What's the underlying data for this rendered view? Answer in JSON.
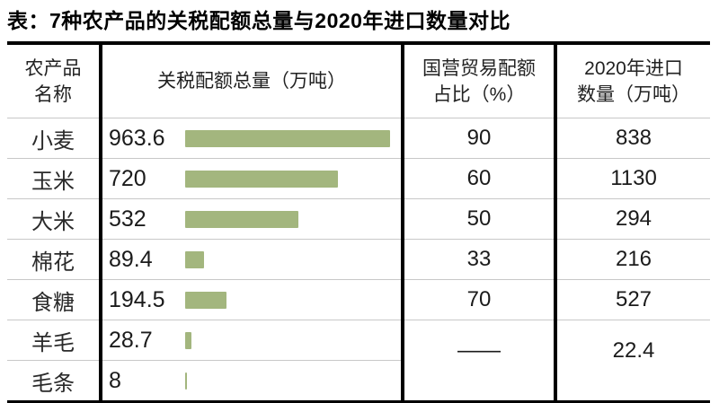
{
  "title": "表：7种农产品的关税配额总量与2020年进口数量对比",
  "table": {
    "headers": {
      "product": "农产品\n名称",
      "quota": "关税配额总量（万吨）",
      "state_pct": "国营贸易配额\n占比（%）",
      "import2020": "2020年进口\n数量（万吨）"
    },
    "bar_max": 963.6,
    "rows": [
      {
        "product": "小麦",
        "quota_label": "963.6",
        "quota_value": 963.6,
        "state_pct": "90",
        "import2020": "838"
      },
      {
        "product": "玉米",
        "quota_label": "720",
        "quota_value": 720,
        "state_pct": "60",
        "import2020": "1130"
      },
      {
        "product": "大米",
        "quota_label": "532",
        "quota_value": 532,
        "state_pct": "50",
        "import2020": "294"
      },
      {
        "product": "棉花",
        "quota_label": "89.4",
        "quota_value": 89.4,
        "state_pct": "33",
        "import2020": "216"
      },
      {
        "product": "食糖",
        "quota_label": "194.5",
        "quota_value": 194.5,
        "state_pct": "70",
        "import2020": "527"
      },
      {
        "product": "羊毛",
        "quota_label": "28.7",
        "quota_value": 28.7,
        "state_pct": "——",
        "import2020": "22.4",
        "rowspan": 2
      },
      {
        "product": "毛条",
        "quota_label": "8",
        "quota_value": 8,
        "state_pct": null,
        "import2020": null
      }
    ]
  },
  "colors": {
    "bar": "#a3b67e",
    "thin_grid": "#c8c8c8",
    "thick_border": "#000000",
    "text": "#1b1b1b"
  },
  "chart_data": {
    "type": "table",
    "title": "表：7种农产品的关税配额总量与2020年进口数量对比",
    "columns": [
      "农产品名称",
      "关税配额总量（万吨）",
      "国营贸易配额占比（%）",
      "2020年进口数量（万吨）"
    ],
    "categories": [
      "小麦",
      "玉米",
      "大米",
      "棉花",
      "食糖",
      "羊毛",
      "毛条"
    ],
    "series": [
      {
        "name": "关税配额总量（万吨）",
        "rendered_as": "bar",
        "values": [
          963.6,
          720,
          532,
          89.4,
          194.5,
          28.7,
          8
        ]
      },
      {
        "name": "国营贸易配额占比（%）",
        "rendered_as": "text",
        "values": [
          90,
          60,
          50,
          33,
          70,
          "——",
          null
        ]
      },
      {
        "name": "2020年进口数量（万吨）",
        "rendered_as": "text",
        "values": [
          838,
          1130,
          294,
          216,
          527,
          22.4,
          null
        ]
      }
    ],
    "bar_axis_max": 963.6,
    "bar_color": "#a3b67e",
    "legend": "none",
    "grid": "thin horizontal row separators; thick black column separators",
    "merged_cells_note": "羊毛与毛条两行在“国营贸易配额占比”与“2020年进口数量”两列为合并单元格，分别显示——与22.4"
  }
}
